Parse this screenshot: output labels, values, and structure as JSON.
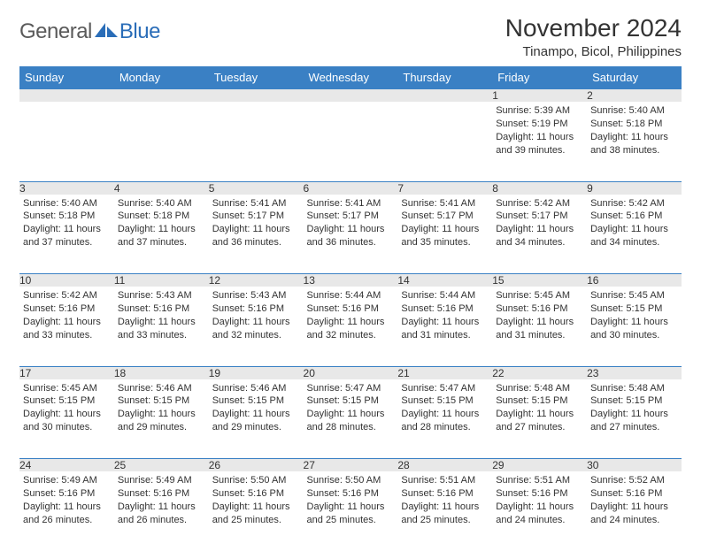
{
  "logo": {
    "general": "General",
    "blue": "Blue"
  },
  "title": "November 2024",
  "location": "Tinampo, Bicol, Philippines",
  "colors": {
    "header_bg": "#3a80c4",
    "header_text": "#ffffff",
    "daynum_bg": "#e8e8e8",
    "border": "#3a80c4",
    "text": "#333333",
    "logo_gray": "#5a5a5a",
    "logo_blue": "#2a6db8"
  },
  "weekdays": [
    "Sunday",
    "Monday",
    "Tuesday",
    "Wednesday",
    "Thursday",
    "Friday",
    "Saturday"
  ],
  "weeks": [
    [
      null,
      null,
      null,
      null,
      null,
      {
        "n": "1",
        "sunrise": "5:39 AM",
        "sunset": "5:19 PM",
        "daylight": "11 hours and 39 minutes."
      },
      {
        "n": "2",
        "sunrise": "5:40 AM",
        "sunset": "5:18 PM",
        "daylight": "11 hours and 38 minutes."
      }
    ],
    [
      {
        "n": "3",
        "sunrise": "5:40 AM",
        "sunset": "5:18 PM",
        "daylight": "11 hours and 37 minutes."
      },
      {
        "n": "4",
        "sunrise": "5:40 AM",
        "sunset": "5:18 PM",
        "daylight": "11 hours and 37 minutes."
      },
      {
        "n": "5",
        "sunrise": "5:41 AM",
        "sunset": "5:17 PM",
        "daylight": "11 hours and 36 minutes."
      },
      {
        "n": "6",
        "sunrise": "5:41 AM",
        "sunset": "5:17 PM",
        "daylight": "11 hours and 36 minutes."
      },
      {
        "n": "7",
        "sunrise": "5:41 AM",
        "sunset": "5:17 PM",
        "daylight": "11 hours and 35 minutes."
      },
      {
        "n": "8",
        "sunrise": "5:42 AM",
        "sunset": "5:17 PM",
        "daylight": "11 hours and 34 minutes."
      },
      {
        "n": "9",
        "sunrise": "5:42 AM",
        "sunset": "5:16 PM",
        "daylight": "11 hours and 34 minutes."
      }
    ],
    [
      {
        "n": "10",
        "sunrise": "5:42 AM",
        "sunset": "5:16 PM",
        "daylight": "11 hours and 33 minutes."
      },
      {
        "n": "11",
        "sunrise": "5:43 AM",
        "sunset": "5:16 PM",
        "daylight": "11 hours and 33 minutes."
      },
      {
        "n": "12",
        "sunrise": "5:43 AM",
        "sunset": "5:16 PM",
        "daylight": "11 hours and 32 minutes."
      },
      {
        "n": "13",
        "sunrise": "5:44 AM",
        "sunset": "5:16 PM",
        "daylight": "11 hours and 32 minutes."
      },
      {
        "n": "14",
        "sunrise": "5:44 AM",
        "sunset": "5:16 PM",
        "daylight": "11 hours and 31 minutes."
      },
      {
        "n": "15",
        "sunrise": "5:45 AM",
        "sunset": "5:16 PM",
        "daylight": "11 hours and 31 minutes."
      },
      {
        "n": "16",
        "sunrise": "5:45 AM",
        "sunset": "5:15 PM",
        "daylight": "11 hours and 30 minutes."
      }
    ],
    [
      {
        "n": "17",
        "sunrise": "5:45 AM",
        "sunset": "5:15 PM",
        "daylight": "11 hours and 30 minutes."
      },
      {
        "n": "18",
        "sunrise": "5:46 AM",
        "sunset": "5:15 PM",
        "daylight": "11 hours and 29 minutes."
      },
      {
        "n": "19",
        "sunrise": "5:46 AM",
        "sunset": "5:15 PM",
        "daylight": "11 hours and 29 minutes."
      },
      {
        "n": "20",
        "sunrise": "5:47 AM",
        "sunset": "5:15 PM",
        "daylight": "11 hours and 28 minutes."
      },
      {
        "n": "21",
        "sunrise": "5:47 AM",
        "sunset": "5:15 PM",
        "daylight": "11 hours and 28 minutes."
      },
      {
        "n": "22",
        "sunrise": "5:48 AM",
        "sunset": "5:15 PM",
        "daylight": "11 hours and 27 minutes."
      },
      {
        "n": "23",
        "sunrise": "5:48 AM",
        "sunset": "5:15 PM",
        "daylight": "11 hours and 27 minutes."
      }
    ],
    [
      {
        "n": "24",
        "sunrise": "5:49 AM",
        "sunset": "5:16 PM",
        "daylight": "11 hours and 26 minutes."
      },
      {
        "n": "25",
        "sunrise": "5:49 AM",
        "sunset": "5:16 PM",
        "daylight": "11 hours and 26 minutes."
      },
      {
        "n": "26",
        "sunrise": "5:50 AM",
        "sunset": "5:16 PM",
        "daylight": "11 hours and 25 minutes."
      },
      {
        "n": "27",
        "sunrise": "5:50 AM",
        "sunset": "5:16 PM",
        "daylight": "11 hours and 25 minutes."
      },
      {
        "n": "28",
        "sunrise": "5:51 AM",
        "sunset": "5:16 PM",
        "daylight": "11 hours and 25 minutes."
      },
      {
        "n": "29",
        "sunrise": "5:51 AM",
        "sunset": "5:16 PM",
        "daylight": "11 hours and 24 minutes."
      },
      {
        "n": "30",
        "sunrise": "5:52 AM",
        "sunset": "5:16 PM",
        "daylight": "11 hours and 24 minutes."
      }
    ]
  ],
  "labels": {
    "sunrise": "Sunrise:",
    "sunset": "Sunset:",
    "daylight": "Daylight:"
  }
}
